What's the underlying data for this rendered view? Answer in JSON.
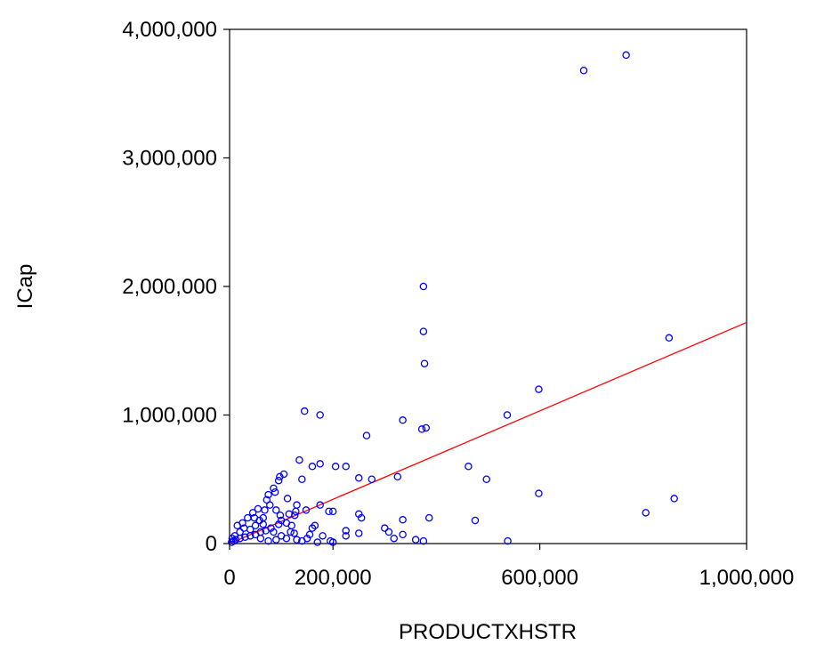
{
  "chart_data": {
    "type": "scatter",
    "title": "",
    "xlabel": "PRODUCTXHSTR",
    "ylabel": "ICap",
    "xlim": [
      0,
      1000000
    ],
    "ylim": [
      0,
      4000000
    ],
    "x_ticks": [
      {
        "value": 0,
        "label": "0"
      },
      {
        "value": 200000,
        "label": "200,000"
      },
      {
        "value": 600000,
        "label": "600,000"
      },
      {
        "value": 1000000,
        "label": "1,000,000"
      }
    ],
    "y_ticks": [
      {
        "value": 0,
        "label": "0"
      },
      {
        "value": 1000000,
        "label": "1,000,000"
      },
      {
        "value": 2000000,
        "label": "2,000,000"
      },
      {
        "value": 3000000,
        "label": "3,000,000"
      },
      {
        "value": 4000000,
        "label": "4,000,000"
      }
    ],
    "grid": false,
    "colors": {
      "points": "#0000ff",
      "fit_line": "#ff0000",
      "axes": "#000000"
    },
    "fit_line": {
      "x": [
        0,
        1000000
      ],
      "y": [
        0,
        1720000
      ]
    },
    "series": [
      {
        "values": [
          [
            685000,
            3680000
          ],
          [
            767000,
            3800000
          ],
          [
            375000,
            2000000
          ],
          [
            375000,
            1650000
          ],
          [
            377000,
            1400000
          ],
          [
            850000,
            1600000
          ],
          [
            598000,
            1200000
          ],
          [
            537000,
            1000000
          ],
          [
            145000,
            1030000
          ],
          [
            175000,
            1000000
          ],
          [
            265000,
            840000
          ],
          [
            335000,
            960000
          ],
          [
            380000,
            900000
          ],
          [
            372000,
            890000
          ],
          [
            135000,
            650000
          ],
          [
            160000,
            600000
          ],
          [
            175000,
            620000
          ],
          [
            205000,
            600000
          ],
          [
            225000,
            600000
          ],
          [
            250000,
            510000
          ],
          [
            275000,
            500000
          ],
          [
            325000,
            520000
          ],
          [
            462000,
            600000
          ],
          [
            497000,
            500000
          ],
          [
            598000,
            390000
          ],
          [
            860000,
            350000
          ],
          [
            805000,
            240000
          ],
          [
            538000,
            20000
          ],
          [
            475000,
            180000
          ],
          [
            386000,
            200000
          ],
          [
            335000,
            185000
          ],
          [
            300000,
            120000
          ],
          [
            308000,
            90000
          ],
          [
            318000,
            40000
          ],
          [
            335000,
            70000
          ],
          [
            360000,
            30000
          ],
          [
            375000,
            20000
          ],
          [
            250000,
            230000
          ],
          [
            255000,
            200000
          ],
          [
            250000,
            80000
          ],
          [
            225000,
            100000
          ],
          [
            225000,
            60000
          ],
          [
            200000,
            250000
          ],
          [
            192000,
            250000
          ],
          [
            175000,
            300000
          ],
          [
            160000,
            120000
          ],
          [
            155000,
            70000
          ],
          [
            150000,
            40000
          ],
          [
            148000,
            260000
          ],
          [
            130000,
            300000
          ],
          [
            128000,
            250000
          ],
          [
            126000,
            220000
          ],
          [
            140000,
            500000
          ],
          [
            105000,
            540000
          ],
          [
            97000,
            520000
          ],
          [
            95000,
            490000
          ],
          [
            88000,
            400000
          ],
          [
            85000,
            430000
          ],
          [
            75000,
            380000
          ],
          [
            78000,
            300000
          ],
          [
            90000,
            260000
          ],
          [
            98000,
            220000
          ],
          [
            100000,
            180000
          ],
          [
            110000,
            160000
          ],
          [
            120000,
            140000
          ],
          [
            95000,
            150000
          ],
          [
            80000,
            120000
          ],
          [
            70000,
            100000
          ],
          [
            60000,
            90000
          ],
          [
            50000,
            70000
          ],
          [
            40000,
            60000
          ],
          [
            30000,
            50000
          ],
          [
            20000,
            40000
          ],
          [
            12000,
            30000
          ],
          [
            8000,
            20000
          ],
          [
            4000,
            10000
          ],
          [
            15000,
            140000
          ],
          [
            25000,
            160000
          ],
          [
            35000,
            200000
          ],
          [
            45000,
            240000
          ],
          [
            55000,
            270000
          ],
          [
            65000,
            200000
          ],
          [
            65000,
            150000
          ],
          [
            72000,
            340000
          ],
          [
            112000,
            350000
          ],
          [
            115000,
            230000
          ],
          [
            118000,
            90000
          ],
          [
            125000,
            80000
          ],
          [
            130000,
            30000
          ],
          [
            110000,
            40000
          ],
          [
            90000,
            30000
          ],
          [
            75000,
            20000
          ],
          [
            60000,
            40000
          ],
          [
            140000,
            20000
          ],
          [
            170000,
            10000
          ],
          [
            195000,
            20000
          ],
          [
            200000,
            10000
          ],
          [
            180000,
            60000
          ],
          [
            165000,
            140000
          ],
          [
            100000,
            60000
          ],
          [
            85000,
            90000
          ],
          [
            50000,
            140000
          ],
          [
            40000,
            110000
          ],
          [
            20000,
            90000
          ],
          [
            10000,
            60000
          ],
          [
            5000,
            40000
          ],
          [
            28000,
            120000
          ],
          [
            58000,
            180000
          ],
          [
            48000,
            200000
          ],
          [
            68000,
            260000
          ]
        ]
      }
    ]
  }
}
